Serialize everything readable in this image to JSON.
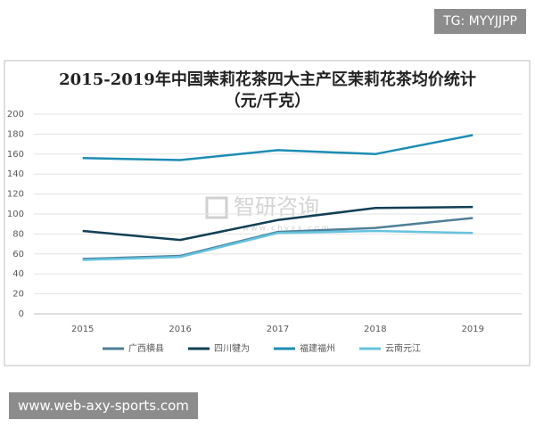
{
  "chart_data": {
    "type": "line",
    "title": "2015-2019年中国茉莉花茶四大主产区茉莉花茶均价统计（元/千克）",
    "categories": [
      "2015",
      "2016",
      "2017",
      "2018",
      "2019"
    ],
    "series": [
      {
        "name": "广西横县",
        "color": "#4f7f98",
        "values": [
          55,
          58,
          82,
          86,
          96
        ]
      },
      {
        "name": "四川犍为",
        "color": "#123f55",
        "values": [
          83,
          74,
          94,
          106,
          107
        ]
      },
      {
        "name": "福建福州",
        "color": "#1c8db3",
        "values": [
          156,
          154,
          164,
          160,
          179
        ]
      },
      {
        "name": "云南元江",
        "color": "#66c3df",
        "values": [
          54,
          57,
          81,
          83,
          81
        ]
      }
    ],
    "ylim": [
      0,
      200
    ],
    "yticks": [
      0,
      20,
      40,
      60,
      80,
      100,
      120,
      140,
      160,
      180,
      200
    ],
    "grid": true,
    "legend": "bottom"
  },
  "watermark": {
    "brand": "智研咨询",
    "site": "www.chyxx.com"
  },
  "overlays": {
    "top_right": "TG: MYYJJPP",
    "bottom_left": "www.web-axy-sports.com"
  }
}
